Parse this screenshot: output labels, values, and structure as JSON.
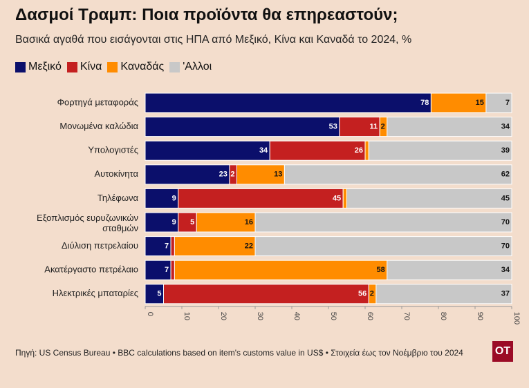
{
  "title": "Δασμοί Τραμπ: Ποια προϊόντα θα επηρεαστούν;",
  "subtitle": "Βασικά αγαθά που εισάγονται στις ΗΠΑ από Μεξικό, Κίνα και Καναδά το 2024, %",
  "legend": [
    {
      "label": "Μεξικό",
      "color": "#0b0f6b"
    },
    {
      "label": "Κίνα",
      "color": "#c42020"
    },
    {
      "label": "Καναδάς",
      "color": "#ff8c00"
    },
    {
      "label": "'Αλλοι",
      "color": "#c8c8c8"
    }
  ],
  "source": "Πηγή: US Census Bureau • BBC calculations based on item's customs value in US$ • Στοιχεία έως τον Νοέμβριο του 2024",
  "logo": "OT",
  "chart_data": {
    "type": "bar",
    "orientation": "horizontal",
    "stacked": true,
    "categories": [
      "Φορτηγά μεταφοράς",
      "Μονωμένα καλώδια",
      "Υπολογιστές",
      "Αυτοκίνητα",
      "Τηλέφωνα",
      "Εξοπλισμός ευρυζωνικών σταθμών",
      "Διύλιση πετρελαίου",
      "Ακατέργαστο πετρέλαιο",
      "Ηλεκτρικές μπαταρίες"
    ],
    "series": [
      {
        "name": "Μεξικό",
        "color": "#0b0f6b",
        "values": [
          78,
          53,
          34,
          23,
          9,
          9,
          7,
          7,
          5
        ]
      },
      {
        "name": "Κίνα",
        "color": "#c42020",
        "values": [
          0,
          11,
          26,
          2,
          45,
          5,
          1,
          1,
          56
        ]
      },
      {
        "name": "Καναδάς",
        "color": "#ff8c00",
        "values": [
          15,
          2,
          1,
          13,
          1,
          16,
          22,
          58,
          2
        ]
      },
      {
        "name": "'Αλλοι",
        "color": "#c8c8c8",
        "values": [
          7,
          34,
          39,
          62,
          45,
          70,
          70,
          34,
          37
        ]
      }
    ],
    "data_labels": [
      [
        "78",
        "",
        "15",
        "7"
      ],
      [
        "53",
        "11",
        "2",
        "34"
      ],
      [
        "34",
        "26",
        "",
        "39"
      ],
      [
        "23",
        "2",
        "13",
        "62"
      ],
      [
        "9",
        "45",
        "",
        "45"
      ],
      [
        "9",
        "5",
        "16",
        "70"
      ],
      [
        "7",
        "",
        "22",
        "70"
      ],
      [
        "7",
        "",
        "58",
        "34"
      ],
      [
        "5",
        "56",
        "2",
        "37"
      ]
    ],
    "xlim": [
      0,
      100
    ],
    "xticks": [
      "0",
      "10",
      "20",
      "30",
      "40",
      "50",
      "60",
      "70",
      "80",
      "90",
      "100"
    ],
    "grid": false,
    "legend_position": "top-left"
  }
}
